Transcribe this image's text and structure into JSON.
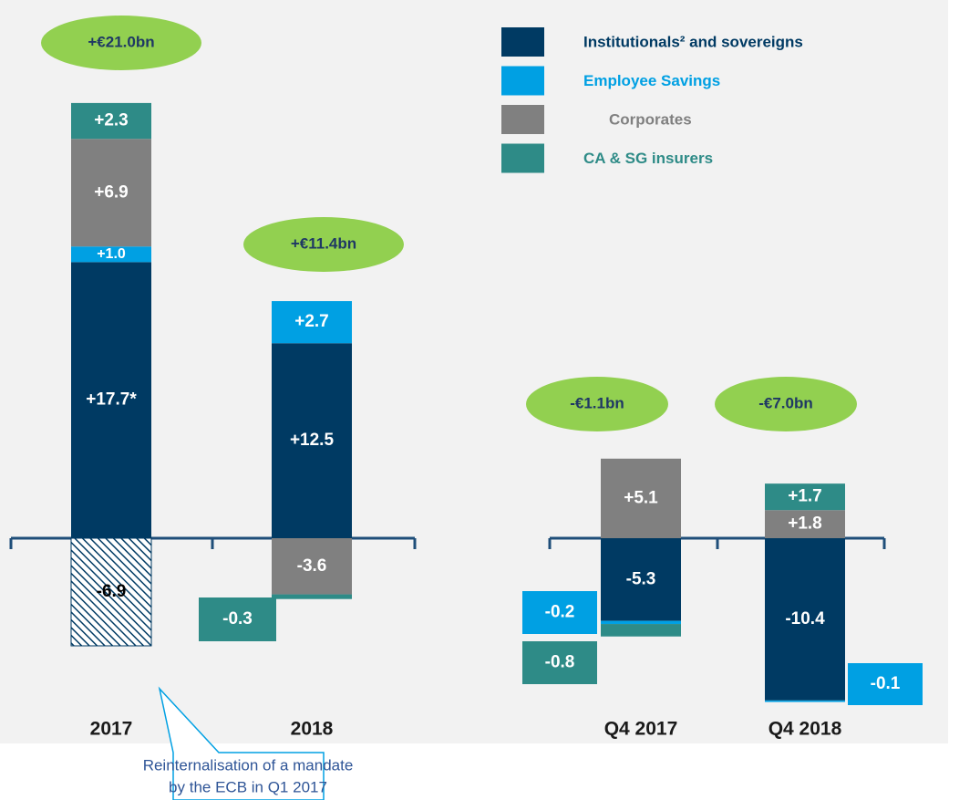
{
  "chart_data": {
    "type": "bar",
    "stacked": true,
    "categories": [
      "2017",
      "2018",
      "Q4 2017",
      "Q4 2018"
    ],
    "series": [
      {
        "name": "Institutionals² and sovereigns",
        "color": "#003a63",
        "values": [
          17.7,
          12.5,
          -5.3,
          -10.4
        ],
        "value_labels": [
          "+17.7*",
          "+12.5",
          "-5.3",
          "-10.4"
        ]
      },
      {
        "name": "Employee Savings",
        "color": "#00a0e3",
        "values": [
          1.0,
          2.7,
          -0.2,
          -0.1
        ],
        "value_labels": [
          "+1.0",
          "+2.7",
          "-0.2",
          "-0.1"
        ]
      },
      {
        "name": "Corporates",
        "color": "#808080",
        "values": [
          6.9,
          -3.6,
          5.1,
          1.8
        ],
        "value_labels": [
          "+6.9",
          "-3.6",
          "+5.1",
          "+1.8"
        ]
      },
      {
        "name": "CA & SG insurers",
        "color": "#2e8b87",
        "values": [
          2.3,
          -0.3,
          -0.8,
          1.7
        ],
        "value_labels": [
          "+2.3",
          "-0.3",
          "-0.8",
          "+1.7"
        ]
      }
    ],
    "hatched": {
      "values": [
        -6.9,
        null,
        null,
        null
      ],
      "value_labels": [
        "-6.9",
        null,
        null,
        null
      ],
      "color": "#003a63",
      "annotation": [
        "Reinternalisation of a mandate",
        "by the ECB in Q1 2017"
      ]
    },
    "totals": {
      "values": [
        21.0,
        11.4,
        -1.1,
        -7.0
      ],
      "value_labels": [
        "+€21.0bn",
        "+€11.4bn",
        "-€1.1bn",
        "-€7.0bn"
      ],
      "color": "#92d050"
    }
  }
}
